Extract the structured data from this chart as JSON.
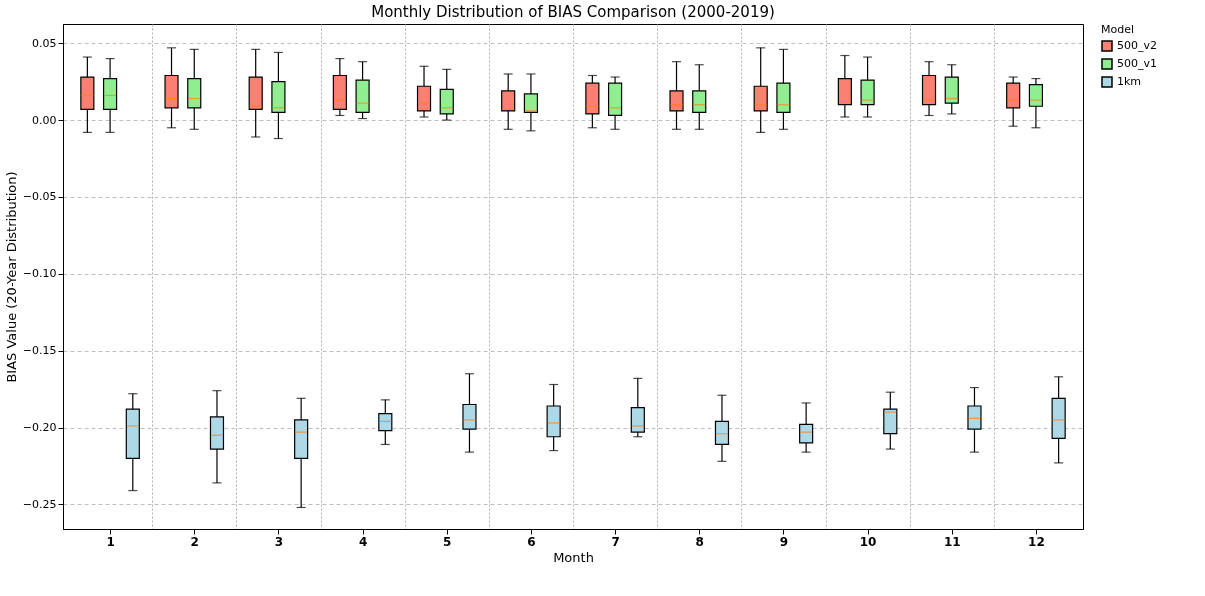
{
  "chart_data": {
    "type": "box",
    "title": "Monthly Distribution of BIAS Comparison (2000-2019)",
    "xlabel": "Month",
    "ylabel": "BIAS Value (20-Year Distribution)",
    "legend_title": "Model",
    "categories": [
      "1",
      "2",
      "3",
      "4",
      "5",
      "6",
      "7",
      "8",
      "9",
      "10",
      "11",
      "12"
    ],
    "ylim": [
      -0.266,
      0.0625
    ],
    "yticks": [
      {
        "value": -0.25,
        "label": "−0.25"
      },
      {
        "value": -0.2,
        "label": "−0.20"
      },
      {
        "value": -0.15,
        "label": "−0.15"
      },
      {
        "value": -0.1,
        "label": "−0.10"
      },
      {
        "value": -0.05,
        "label": "−0.05"
      },
      {
        "value": 0.0,
        "label": "0.00"
      },
      {
        "value": 0.05,
        "label": "0.05"
      }
    ],
    "grid": true,
    "legend": "top right",
    "series": [
      {
        "name": "500_v2",
        "color": "#fa8072",
        "boxes": [
          {
            "low": -0.008,
            "q1": 0.007,
            "median": 0.016,
            "q3": 0.028,
            "high": 0.041
          },
          {
            "low": -0.005,
            "q1": 0.008,
            "median": 0.014,
            "q3": 0.029,
            "high": 0.047
          },
          {
            "low": -0.011,
            "q1": 0.007,
            "median": 0.009,
            "q3": 0.028,
            "high": 0.046
          },
          {
            "low": 0.003,
            "q1": 0.007,
            "median": 0.013,
            "q3": 0.029,
            "high": 0.04
          },
          {
            "low": 0.002,
            "q1": 0.006,
            "median": 0.011,
            "q3": 0.022,
            "high": 0.035
          },
          {
            "low": -0.006,
            "q1": 0.006,
            "median": 0.007,
            "q3": 0.019,
            "high": 0.03
          },
          {
            "low": -0.005,
            "q1": 0.004,
            "median": 0.009,
            "q3": 0.024,
            "high": 0.029
          },
          {
            "low": -0.006,
            "q1": 0.006,
            "median": 0.01,
            "q3": 0.019,
            "high": 0.038
          },
          {
            "low": -0.008,
            "q1": 0.006,
            "median": 0.01,
            "q3": 0.022,
            "high": 0.047
          },
          {
            "low": 0.002,
            "q1": 0.01,
            "median": 0.012,
            "q3": 0.027,
            "high": 0.042
          },
          {
            "low": 0.003,
            "q1": 0.01,
            "median": 0.013,
            "q3": 0.029,
            "high": 0.038
          },
          {
            "low": -0.004,
            "q1": 0.008,
            "median": 0.013,
            "q3": 0.024,
            "high": 0.028
          }
        ]
      },
      {
        "name": "500_v1",
        "color": "#90ee90",
        "boxes": [
          {
            "low": -0.008,
            "q1": 0.007,
            "median": 0.016,
            "q3": 0.027,
            "high": 0.04
          },
          {
            "low": -0.006,
            "q1": 0.008,
            "median": 0.014,
            "q3": 0.027,
            "high": 0.046
          },
          {
            "low": -0.012,
            "q1": 0.005,
            "median": 0.008,
            "q3": 0.025,
            "high": 0.044
          },
          {
            "low": 0.001,
            "q1": 0.005,
            "median": 0.011,
            "q3": 0.026,
            "high": 0.038
          },
          {
            "low": 0.0,
            "q1": 0.004,
            "median": 0.008,
            "q3": 0.02,
            "high": 0.033
          },
          {
            "low": -0.007,
            "q1": 0.005,
            "median": 0.006,
            "q3": 0.017,
            "high": 0.03
          },
          {
            "low": -0.006,
            "q1": 0.003,
            "median": 0.008,
            "q3": 0.024,
            "high": 0.028
          },
          {
            "low": -0.006,
            "q1": 0.005,
            "median": 0.01,
            "q3": 0.019,
            "high": 0.036
          },
          {
            "low": -0.006,
            "q1": 0.005,
            "median": 0.01,
            "q3": 0.024,
            "high": 0.046
          },
          {
            "low": 0.002,
            "q1": 0.01,
            "median": 0.013,
            "q3": 0.026,
            "high": 0.041
          },
          {
            "low": 0.004,
            "q1": 0.011,
            "median": 0.014,
            "q3": 0.028,
            "high": 0.036
          },
          {
            "low": -0.005,
            "q1": 0.009,
            "median": 0.013,
            "q3": 0.023,
            "high": 0.027
          }
        ]
      },
      {
        "name": "1km",
        "color": "#add8e6",
        "boxes": [
          {
            "low": -0.241,
            "q1": -0.22,
            "median": -0.199,
            "q3": -0.188,
            "high": -0.178
          },
          {
            "low": -0.236,
            "q1": -0.214,
            "median": -0.205,
            "q3": -0.193,
            "high": -0.176
          },
          {
            "low": -0.252,
            "q1": -0.22,
            "median": -0.203,
            "q3": -0.195,
            "high": -0.181
          },
          {
            "low": -0.211,
            "q1": -0.202,
            "median": -0.196,
            "q3": -0.191,
            "high": -0.182
          },
          {
            "low": -0.216,
            "q1": -0.201,
            "median": -0.195,
            "q3": -0.185,
            "high": -0.165
          },
          {
            "low": -0.215,
            "q1": -0.206,
            "median": -0.197,
            "q3": -0.186,
            "high": -0.172
          },
          {
            "low": -0.206,
            "q1": -0.203,
            "median": -0.199,
            "q3": -0.187,
            "high": -0.168
          },
          {
            "low": -0.222,
            "q1": -0.211,
            "median": -0.204,
            "q3": -0.196,
            "high": -0.179
          },
          {
            "low": -0.216,
            "q1": -0.21,
            "median": -0.203,
            "q3": -0.198,
            "high": -0.184
          },
          {
            "low": -0.214,
            "q1": -0.204,
            "median": -0.19,
            "q3": -0.188,
            "high": -0.177
          },
          {
            "low": -0.216,
            "q1": -0.201,
            "median": -0.194,
            "q3": -0.186,
            "high": -0.174
          },
          {
            "low": -0.223,
            "q1": -0.207,
            "median": -0.195,
            "q3": -0.181,
            "high": -0.167
          }
        ]
      }
    ]
  }
}
